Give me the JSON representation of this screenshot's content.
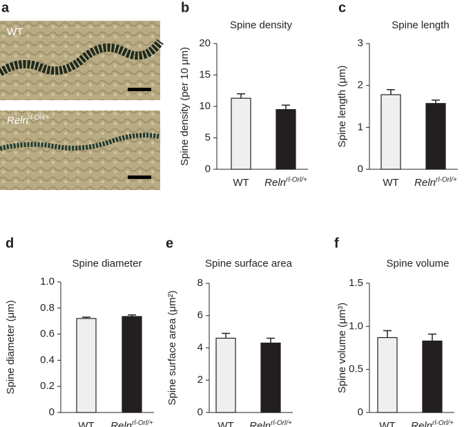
{
  "images": {
    "panel": "a",
    "labels": [
      "WT",
      "Reln"
    ],
    "label_superscripts": [
      null,
      "rl-Orl/+"
    ]
  },
  "chart_data": [
    {
      "type": "bar",
      "panel": "b",
      "title": "Spine density",
      "ylabel": "Spine density (per 10 μm)",
      "categories": [
        "WT",
        "Reln"
      ],
      "category_superscripts": [
        null,
        "rl-Orl/+"
      ],
      "values": [
        11.3,
        9.5
      ],
      "errors": [
        0.7,
        0.7
      ],
      "colors": [
        "#efefef",
        "#231f20"
      ],
      "ylim": [
        0,
        20
      ],
      "yticks": [
        0,
        5,
        10,
        15,
        20
      ]
    },
    {
      "type": "bar",
      "panel": "c",
      "title": "Spine length",
      "ylabel": "Spine length (μm)",
      "categories": [
        "WT",
        "Reln"
      ],
      "category_superscripts": [
        null,
        "rl-Orl/+"
      ],
      "values": [
        1.78,
        1.57
      ],
      "errors": [
        0.12,
        0.08
      ],
      "colors": [
        "#efefef",
        "#231f20"
      ],
      "ylim": [
        0,
        3
      ],
      "yticks": [
        0,
        1,
        2,
        3
      ]
    },
    {
      "type": "bar",
      "panel": "d",
      "title": "Spine diameter",
      "ylabel": "Spine diameter (μm)",
      "categories": [
        "WT",
        "Reln"
      ],
      "category_superscripts": [
        null,
        "rl-Orl/+"
      ],
      "values": [
        0.72,
        0.735
      ],
      "errors": [
        0.01,
        0.012
      ],
      "colors": [
        "#efefef",
        "#231f20"
      ],
      "ylim": [
        0,
        1
      ],
      "yticks": [
        0,
        0.2,
        0.4,
        0.6,
        0.8,
        {
          "value": 1,
          "label": "1.0"
        }
      ]
    },
    {
      "type": "bar",
      "panel": "e",
      "title": "Spine surface area",
      "ylabel": "Spine surface area (μm²)",
      "categories": [
        "WT",
        "Reln"
      ],
      "category_superscripts": [
        null,
        "rl-Orl/+"
      ],
      "values": [
        4.6,
        4.3
      ],
      "errors": [
        0.3,
        0.3
      ],
      "colors": [
        "#efefef",
        "#231f20"
      ],
      "ylim": [
        0,
        8
      ],
      "yticks": [
        0,
        2,
        4,
        6,
        8
      ]
    },
    {
      "type": "bar",
      "panel": "f",
      "title": "Spine volume",
      "ylabel": "Spine volume (μm³)",
      "categories": [
        "WT",
        "Reln"
      ],
      "category_superscripts": [
        null,
        "rl-Orl/+"
      ],
      "values": [
        0.87,
        0.83
      ],
      "errors": [
        0.08,
        0.08
      ],
      "colors": [
        "#efefef",
        "#231f20"
      ],
      "ylim": [
        0,
        1.5
      ],
      "yticks": [
        0,
        {
          "value": 0.5,
          "label": "0.5"
        },
        {
          "value": 1,
          "label": "1.0"
        },
        1.5
      ]
    }
  ]
}
